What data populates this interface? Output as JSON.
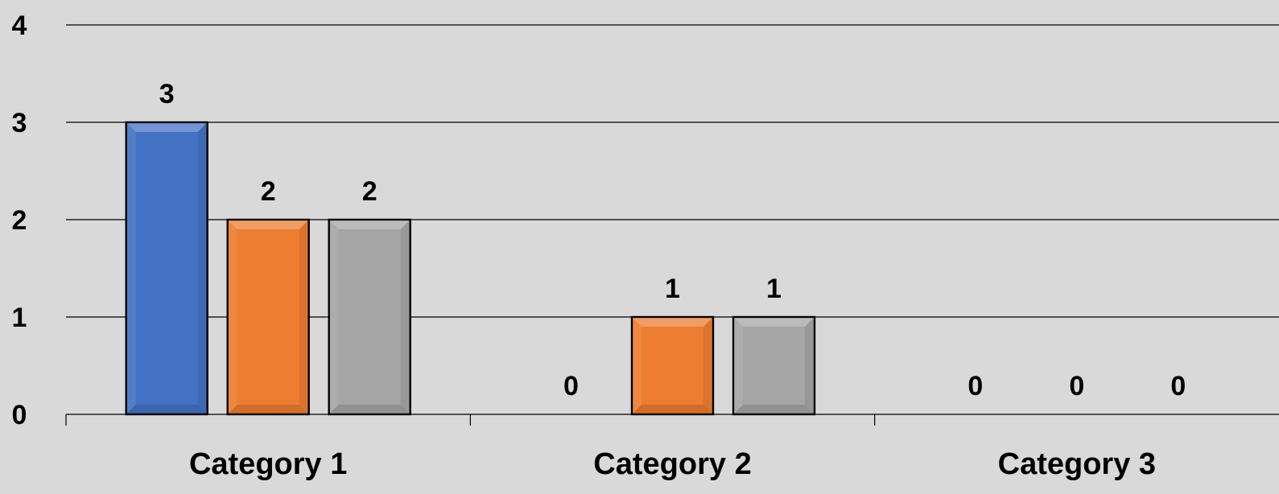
{
  "chart_data": {
    "type": "bar",
    "title": "",
    "xlabel": "",
    "ylabel": "",
    "categories": [
      "Category 1",
      "Category 2",
      "Category 3"
    ],
    "series": [
      {
        "values": [
          3,
          0,
          0
        ],
        "color": "#4472c4"
      },
      {
        "values": [
          2,
          1,
          0
        ],
        "color": "#ed7d31"
      },
      {
        "values": [
          2,
          1,
          0
        ],
        "color": "#a5a5a5"
      }
    ],
    "ylim": [
      0,
      4
    ],
    "yticks": [
      "0",
      "1",
      "2",
      "3",
      "4"
    ],
    "data_labels": true,
    "grid": true,
    "legend": "none",
    "background": "#d9d9d9"
  }
}
